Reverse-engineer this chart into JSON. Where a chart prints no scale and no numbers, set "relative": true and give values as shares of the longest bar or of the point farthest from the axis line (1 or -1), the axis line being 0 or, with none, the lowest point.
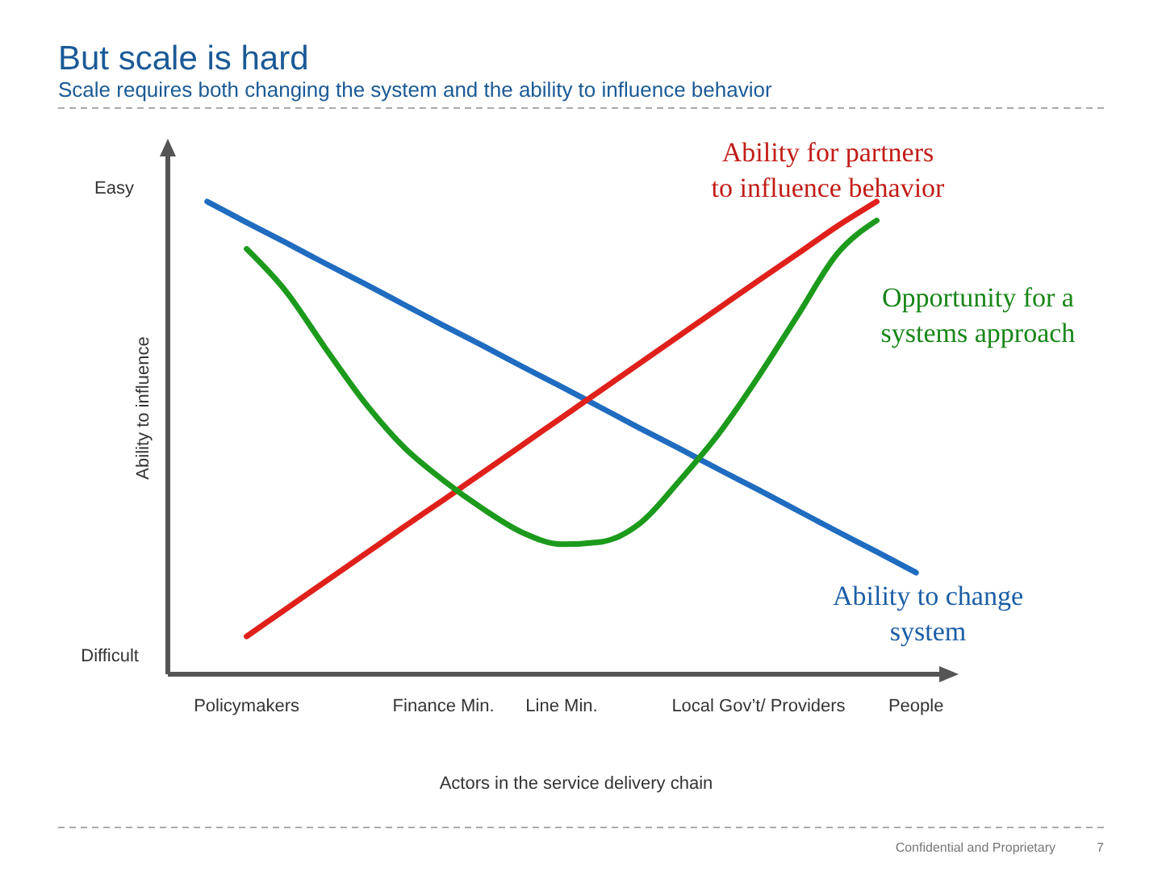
{
  "chart_data": {
    "type": "line",
    "title": "But scale is hard",
    "subtitle": "Scale requires both changing the system and the ability to influence behavior",
    "xlabel": "Actors in the service delivery chain",
    "ylabel": "Ability to influence",
    "relative": true,
    "categories": [
      null,
      null,
      "Policymakers",
      null,
      null,
      null,
      null,
      "Finance Min.",
      null,
      null,
      "Line Min.",
      null,
      null,
      null,
      null,
      "Local Gov’t/ Providers",
      null,
      null,
      null,
      "People",
      null
    ],
    "series": [
      {
        "name": "Ability to change system",
        "color": "#1f6cc0",
        "values": [
          null,
          1.0,
          0.956,
          0.913,
          0.869,
          0.826,
          0.782,
          0.738,
          0.695,
          0.651,
          0.608,
          0.564,
          0.52,
          0.477,
          0.433,
          0.39,
          0.346,
          0.302,
          0.259,
          0.215,
          null
        ]
      },
      {
        "name": "Ability for partners to influence behavior",
        "color": "#e0201b",
        "values": [
          null,
          null,
          0.08,
          0.138,
          0.196,
          0.254,
          0.312,
          0.369,
          0.427,
          0.485,
          0.543,
          0.601,
          0.659,
          0.717,
          0.775,
          0.833,
          0.89,
          0.948,
          1.0,
          null,
          null
        ]
      },
      {
        "name": "Opportunity for a systems approach",
        "color": "#1c9a1c",
        "values": [
          null,
          null,
          0.9,
          0.81,
          0.69,
          0.575,
          0.48,
          0.41,
          0.35,
          0.3,
          0.275,
          0.28,
          0.32,
          0.41,
          0.51,
          0.63,
          0.76,
          0.89,
          0.96,
          null,
          null
        ]
      }
    ],
    "grid": false,
    "legend": false,
    "marker": "none",
    "line_style": "solid",
    "annotations": [
      "Easy",
      "Difficult",
      "Confidential and Proprietary",
      "7"
    ]
  }
}
